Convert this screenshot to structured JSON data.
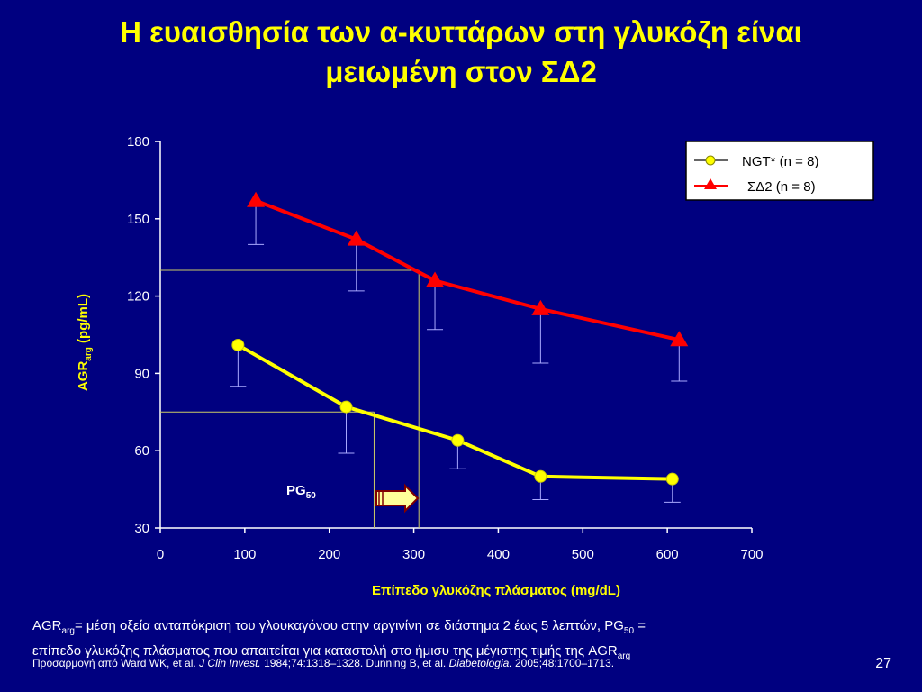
{
  "title": {
    "line1": "Η ευαισθησία των α-κυττάρων στη γλυκόζη είναι",
    "line2": "μειωμένη στον ΣΔ2"
  },
  "chart_data": {
    "type": "line",
    "xlim": [
      0,
      700
    ],
    "ylim": [
      30,
      180
    ],
    "x_ticks": [
      "0",
      "100",
      "200",
      "300",
      "400",
      "500",
      "600",
      "700"
    ],
    "y_ticks": [
      "30",
      "60",
      "90",
      "120",
      "150",
      "180"
    ],
    "xlabel": "Επίπεδο γλυκόζης πλάσματος (mg/dL)",
    "ylabel_main": "AGR",
    "ylabel_sub": "arg",
    "ylabel_tail": " (pg/mL)",
    "legend_position": "top-right",
    "series": [
      {
        "name": "NGT* (n = 8)",
        "color": "#FFFF00",
        "marker": "circle",
        "x": [
          92,
          220,
          352,
          450,
          606
        ],
        "y": [
          101,
          77,
          64,
          50,
          49
        ],
        "err_lower": [
          85,
          59,
          53,
          41,
          40
        ]
      },
      {
        "name": "ΣΔ2 (n = 8)",
        "color": "#FF0000",
        "marker": "triangle",
        "x": [
          113,
          232,
          325,
          450,
          614
        ],
        "y": [
          157,
          142,
          126,
          115,
          103
        ],
        "err_lower": [
          140,
          122,
          107,
          94,
          87
        ]
      }
    ],
    "annotations": {
      "pg50_main": "PG",
      "pg50_sub": "50",
      "ngt_ref": {
        "y": 75,
        "x": 253
      },
      "t2d_ref": {
        "y": 130,
        "x": 306
      }
    }
  },
  "footer": {
    "line1_a": "AGR",
    "line1_sub": "arg",
    "line1_b": "= μέση οξεία ανταπόκριση του γλουκαγόνου στην αργινίνη σε διάστημα 2 έως 5 λεπτών, PG",
    "line1_sub2": "50",
    "line1_c": " =",
    "line2_a": "επίπεδο γλυκόζης πλάσματος που απαιτείται για καταστολή στο ήμισυ της μέγιστης τιμής της AGR",
    "line2_sub": "arg"
  },
  "reference": {
    "prefix": "Προσαρμογή από Ward WK, et al. ",
    "journal1": "J Clin Invest.",
    "mid": " 1984;74:1318–1328. Dunning B, et al. ",
    "journal2": "Diabetologia.",
    "suffix": " 2005;48:1700–1713."
  },
  "page_number": "27"
}
